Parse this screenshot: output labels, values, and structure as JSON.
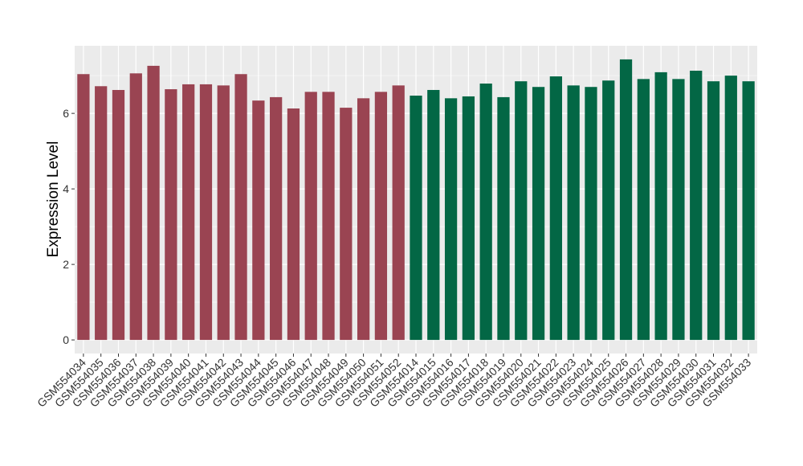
{
  "chart_data": {
    "type": "bar",
    "ylabel": "Expression Level",
    "categories": [
      "GSM554034",
      "GSM554035",
      "GSM554036",
      "GSM554037",
      "GSM554038",
      "GSM554039",
      "GSM554040",
      "GSM554041",
      "GSM554042",
      "GSM554043",
      "GSM554044",
      "GSM554045",
      "GSM554046",
      "GSM554047",
      "GSM554048",
      "GSM554049",
      "GSM554050",
      "GSM554051",
      "GSM554052",
      "GSM554014",
      "GSM554015",
      "GSM554016",
      "GSM554017",
      "GSM554018",
      "GSM554019",
      "GSM554020",
      "GSM554021",
      "GSM554022",
      "GSM554023",
      "GSM554024",
      "GSM554025",
      "GSM554026",
      "GSM554027",
      "GSM554028",
      "GSM554029",
      "GSM554030",
      "GSM554031",
      "GSM554032",
      "GSM554033"
    ],
    "values": [
      7.04,
      6.72,
      6.62,
      7.06,
      7.26,
      6.64,
      6.77,
      6.77,
      6.74,
      7.04,
      6.34,
      6.43,
      6.13,
      6.57,
      6.57,
      6.15,
      6.4,
      6.57,
      6.74,
      6.47,
      6.62,
      6.4,
      6.45,
      6.79,
      6.43,
      6.85,
      6.7,
      6.98,
      6.74,
      6.7,
      6.87,
      7.43,
      6.91,
      7.09,
      6.91,
      7.13,
      6.85,
      7.0,
      6.85
    ],
    "colors": [
      "#9a4452",
      "#9a4452",
      "#9a4452",
      "#9a4452",
      "#9a4452",
      "#9a4452",
      "#9a4452",
      "#9a4452",
      "#9a4452",
      "#9a4452",
      "#9a4452",
      "#9a4452",
      "#9a4452",
      "#9a4452",
      "#9a4452",
      "#9a4452",
      "#9a4452",
      "#9a4452",
      "#9a4452",
      "#036745",
      "#036745",
      "#036745",
      "#036745",
      "#036745",
      "#036745",
      "#036745",
      "#036745",
      "#036745",
      "#036745",
      "#036745",
      "#036745",
      "#036745",
      "#036745",
      "#036745",
      "#036745",
      "#036745",
      "#036745",
      "#036745",
      "#036745"
    ],
    "ylim": [
      -0.36,
      7.79
    ],
    "yticks": [
      0,
      2,
      4,
      6
    ],
    "grid": true
  }
}
